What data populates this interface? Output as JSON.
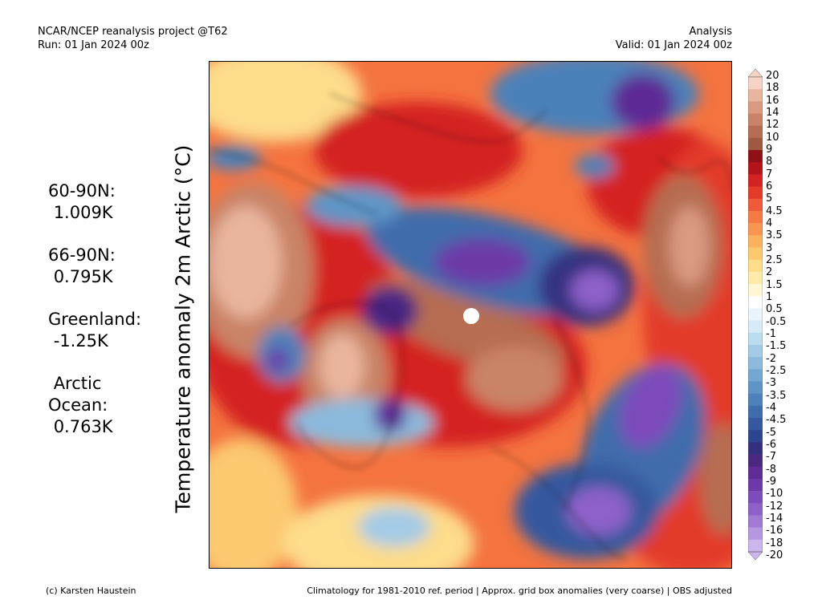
{
  "header": {
    "title": "NCAR/NCEP reanalysis project @T62",
    "run": "Run: 01 Jan 2024 00z",
    "kind": "Analysis",
    "valid": "Valid: 01 Jan 2024 00z"
  },
  "y_label": "Temperature anomaly 2m Arctic (°C)",
  "stats": [
    {
      "label": "60-90N:",
      "value": "1.009K"
    },
    {
      "label": "66-90N:",
      "value": "0.795K"
    },
    {
      "label": "Greenland:",
      "value": "-1.25K"
    },
    {
      "label": "Arctic\nOcean:",
      "value": "0.763K"
    }
  ],
  "colorbar": {
    "labels": [
      "20",
      "18",
      "16",
      "14",
      "12",
      "10",
      "9",
      "8",
      "7",
      "6",
      "5",
      "4.5",
      "4",
      "3.5",
      "3",
      "2.5",
      "2",
      "1.5",
      "1",
      "0.5",
      "-0.5",
      "-1",
      "-1.5",
      "-2",
      "-2.5",
      "-3",
      "-3.5",
      "-4",
      "-4.5",
      "-5",
      "-6",
      "-7",
      "-8",
      "-9",
      "-10",
      "-12",
      "-14",
      "-16",
      "-18",
      "-20"
    ],
    "colors": [
      "#f6d3c4",
      "#e9b59f",
      "#d99a80",
      "#c98366",
      "#b66d51",
      "#a15a42",
      "#8e1117",
      "#b3141a",
      "#d42121",
      "#e33a2a",
      "#ef5a3a",
      "#f57a44",
      "#f89550",
      "#fbb15f",
      "#fcc870",
      "#fddc8a",
      "#feebab",
      "#fff6d4",
      "#ffffff",
      "#eaf4fb",
      "#d6ebf7",
      "#bcdcf0",
      "#a4cbe6",
      "#8bbadc",
      "#74a8d2",
      "#5e95c6",
      "#4c81b9",
      "#3f6cac",
      "#35589e",
      "#2d4590",
      "#34307f",
      "#4a2882",
      "#5d2c95",
      "#6c3aa8",
      "#7d4cbb",
      "#8e61c9",
      "#a17ad6",
      "#b597e2",
      "#cbb6ee"
    ]
  },
  "footer": {
    "credit": "(c) Karsten Haustein",
    "note": "Climatology for 1981-2010 ref. period | Approx. grid box anomalies (very coarse) | OBS adjusted"
  }
}
